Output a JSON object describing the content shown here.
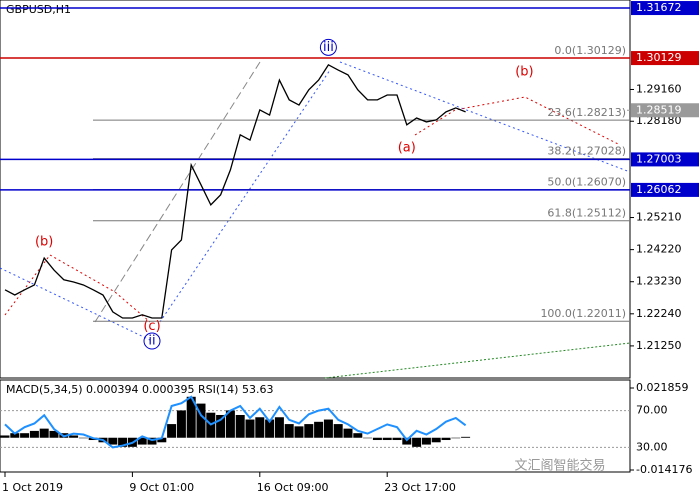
{
  "chart_data": {
    "type": "line",
    "title": "GBPUSD,H1",
    "categories": [
      "1 Oct 2019",
      null,
      null,
      null,
      null,
      null,
      null,
      null,
      null,
      null,
      null,
      null,
      null,
      "9 Oct 01:00",
      null,
      null,
      null,
      null,
      null,
      null,
      null,
      null,
      null,
      null,
      null,
      null,
      "16 Oct 09:00",
      null,
      null,
      null,
      null,
      null,
      null,
      null,
      null,
      null,
      null,
      null,
      null,
      "23 Oct 17:00",
      null,
      null,
      null,
      null,
      null,
      null,
      null,
      null,
      null,
      null,
      null,
      null,
      null,
      null,
      null,
      null,
      null,
      null,
      null,
      null,
      null,
      null,
      null,
      null
    ],
    "series": [
      {
        "name": "GBPUSD",
        "color": "#000000",
        "values": [
          1.2298,
          1.2282,
          1.2298,
          1.2313,
          1.2396,
          1.2359,
          1.2329,
          1.2322,
          1.2313,
          1.2298,
          1.2282,
          1.223,
          1.2211,
          1.2211,
          1.2221,
          1.2211,
          1.2211,
          1.2421,
          1.2452,
          1.2683,
          1.2622,
          1.256,
          1.2591,
          1.2668,
          1.2776,
          1.276,
          1.2853,
          1.2837,
          1.2945,
          1.2884,
          1.2868,
          1.2915,
          1.2945,
          1.2992,
          1.2976,
          1.2961,
          1.2915,
          1.2884,
          1.2884,
          1.2899,
          1.2899,
          1.2807,
          1.2828,
          1.2816,
          1.2822,
          1.2847,
          1.2859,
          1.2847,
          null,
          null,
          null,
          null,
          null,
          null,
          null,
          null,
          null,
          null,
          null,
          null,
          null,
          null,
          null,
          null
        ]
      }
    ],
    "ylim": [
      1.2026,
      1.3192
    ],
    "yticks": [
      {
        "value": 1.2916,
        "label": "1.29160"
      },
      {
        "value": 1.2818,
        "label": "1.28180"
      },
      {
        "value": 1.2521,
        "label": "1.25210"
      },
      {
        "value": 1.2422,
        "label": "1.24220"
      },
      {
        "value": 1.2323,
        "label": "1.23230"
      },
      {
        "value": 1.2224,
        "label": "1.22240"
      },
      {
        "value": 1.2125,
        "label": "1.21250"
      }
    ],
    "levels": [
      {
        "value": 1.31672,
        "label": "1.31672",
        "color": "#0000cc"
      },
      {
        "value": 1.30129,
        "label": "1.30129",
        "color": "#cc0000"
      },
      {
        "value": 1.28519,
        "label": "1.28519",
        "color": "#9a9a9a"
      },
      {
        "value": 1.27003,
        "label": "1.27003",
        "color": "#0000cc"
      },
      {
        "value": 1.26062,
        "label": "1.26062",
        "color": "#0000cc"
      }
    ],
    "fib": [
      {
        "value": 1.30129,
        "label": "0.0(1.30129)"
      },
      {
        "value": 1.28213,
        "label": "23.6(1.28213)"
      },
      {
        "value": 1.27028,
        "label": "38.2(1.27028)"
      },
      {
        "value": 1.2607,
        "label": "50.0(1.26070)"
      },
      {
        "value": 1.25112,
        "label": "61.8(1.25112)"
      },
      {
        "value": 1.22011,
        "label": "100.0(1.22011)"
      }
    ],
    "waves": [
      {
        "label": "(b)",
        "x": 4,
        "y": 1.2445,
        "color": "#dd0000",
        "circled": false
      },
      {
        "label": "(c)",
        "x": 15,
        "y": 1.2185,
        "color": "#dd0000",
        "circled": false
      },
      {
        "label": "ii",
        "x": 15,
        "y": 1.214,
        "color": "#0000cc",
        "circled": true
      },
      {
        "label": "iii",
        "x": 33,
        "y": 1.3046,
        "color": "#0000cc",
        "circled": true
      },
      {
        "label": "(a)",
        "x": 41,
        "y": 1.2735,
        "color": "#dd0000",
        "circled": false
      },
      {
        "label": "(b)",
        "x": 53,
        "y": 1.297,
        "color": "#dd0000",
        "circled": false
      }
    ],
    "indicator": {
      "title": "MACD(5,34,5) 0.000394 0.000395 RSI(14) 53.63",
      "ylim": [
        -0.014176,
        0.021859
      ],
      "yticks": [
        {
          "value": 0.021859,
          "label": "0.021859"
        },
        {
          "value": -0.014176,
          "label": "-0.014176"
        }
      ],
      "macd": [
        0.001,
        0.002,
        0.002,
        0.003,
        0.004,
        0.003,
        0.002,
        0.001,
        0,
        -0.001,
        -0.002,
        -0.003,
        -0.004,
        -0.004,
        -0.003,
        -0.003,
        -0.002,
        0.006,
        0.012,
        0.018,
        0.015,
        0.011,
        0.01,
        0.012,
        0.01,
        0.008,
        0.009,
        0.008,
        0.009,
        0.006,
        0.005,
        0.006,
        0.007,
        0.008,
        0.006,
        0.004,
        0.002,
        0,
        -0.001,
        -0.001,
        -0.001,
        -0.003,
        -0.004,
        -0.003,
        -0.002,
        -0.001,
        0,
        0.000394
      ],
      "rsi_lim": [
        0,
        100
      ],
      "rsi_ticks": [
        {
          "value": 70,
          "label": "70.00"
        },
        {
          "value": 30,
          "label": "30.00"
        }
      ],
      "rsi": [
        55,
        45,
        52,
        56,
        65,
        50,
        42,
        45,
        44,
        40,
        38,
        30,
        32,
        35,
        42,
        38,
        40,
        75,
        78,
        85,
        65,
        55,
        60,
        70,
        75,
        62,
        72,
        58,
        74,
        60,
        56,
        66,
        70,
        72,
        60,
        55,
        48,
        45,
        50,
        55,
        52,
        38,
        48,
        44,
        50,
        58,
        62,
        54
      ],
      "rsi_color": "#1e90ff"
    },
    "watermark": "文汇阁智能交易"
  }
}
